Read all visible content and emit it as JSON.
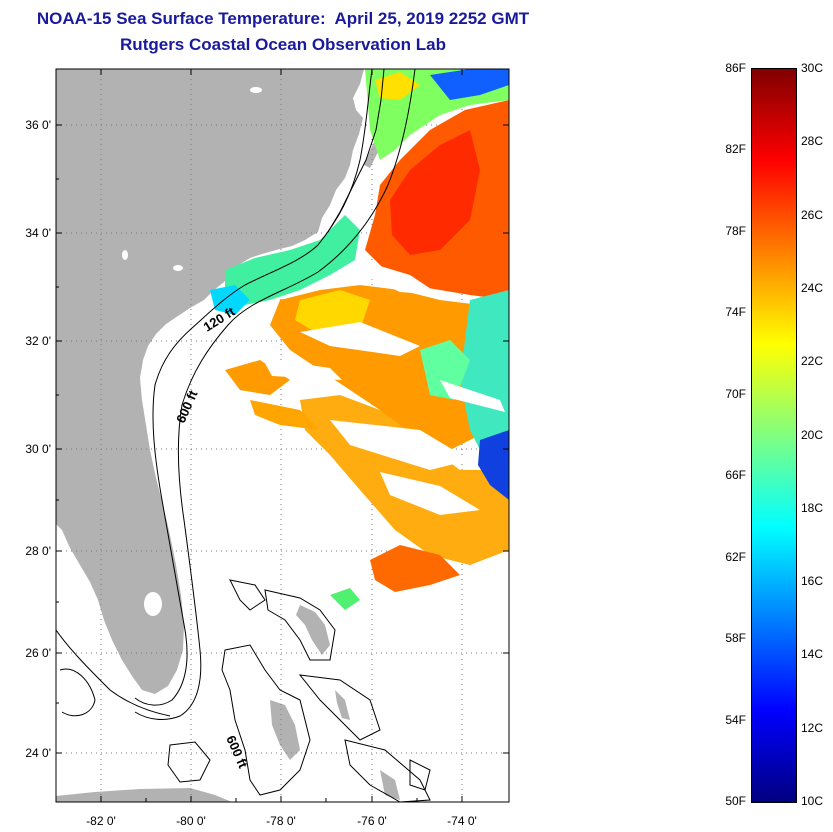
{
  "title": {
    "line1": "NOAA-15 Sea Surface Temperature:  April 25, 2019 2252 GMT",
    "line2": "Rutgers Coastal Ocean Observation Lab",
    "color": "#1a1a9c"
  },
  "map": {
    "lat_labels": [
      "36 0'",
      "34 0'",
      "32 0'",
      "30 0'",
      "28 0'",
      "26 0'",
      "24 0'"
    ],
    "lon_labels": [
      "-82 0'",
      "-80 0'",
      "-78 0'",
      "-76 0'",
      "-74 0'"
    ],
    "contour_labels": [
      "120 ft",
      "600 ft",
      "600 ft"
    ],
    "colors": {
      "land": "#b2b2b2",
      "ocean": "#ffffff",
      "contour": "#000000",
      "grid": "#7a7a7a"
    }
  },
  "colorbar": {
    "fahrenheit_labels": [
      "86F",
      "82F",
      "78F",
      "74F",
      "70F",
      "66F",
      "62F",
      "58F",
      "54F",
      "50F"
    ],
    "celsius_labels": [
      "30C",
      "28C",
      "26C",
      "24C",
      "22C",
      "20C",
      "18C",
      "16C",
      "14C",
      "12C",
      "10C"
    ],
    "colormap_stops": [
      "#000080",
      "#0000ff",
      "#0080ff",
      "#00ffff",
      "#80ff80",
      "#ffff00",
      "#ff8000",
      "#ff0000",
      "#800000"
    ]
  }
}
